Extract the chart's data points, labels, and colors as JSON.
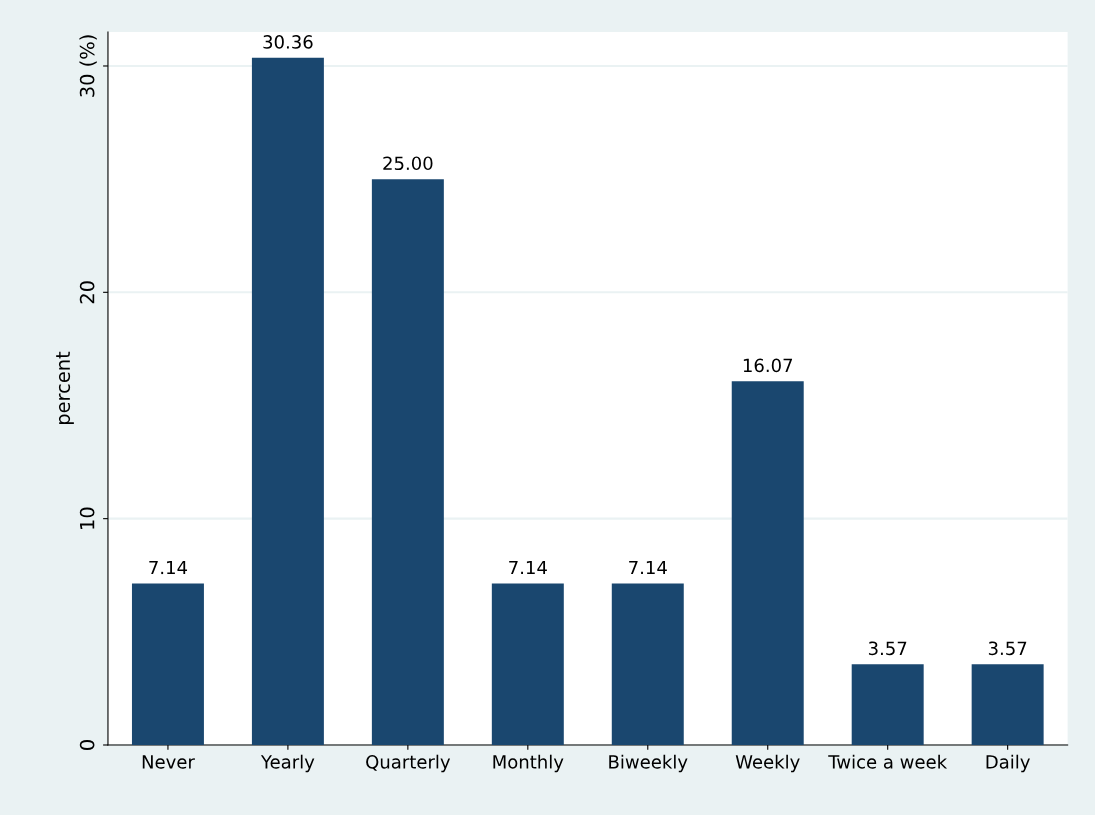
{
  "chart_data": {
    "type": "bar",
    "ylabel": "percent",
    "categories": [
      "Never",
      "Yearly",
      "Quarterly",
      "Monthly",
      "Biweekly",
      "Weekly",
      "Twice a week",
      "Daily"
    ],
    "values": [
      7.14,
      30.36,
      25.0,
      7.14,
      7.14,
      16.07,
      3.57,
      3.57
    ],
    "value_labels": [
      "7.14",
      "30.36",
      "25.00",
      "7.14",
      "7.14",
      "16.07",
      "3.57",
      "3.57"
    ],
    "color": "#1a476f",
    "ylim": [
      0,
      31.5
    ],
    "yticks": [
      0,
      10,
      20,
      {
        "value": 30,
        "label": "30 (%)"
      }
    ],
    "grid": "y"
  }
}
